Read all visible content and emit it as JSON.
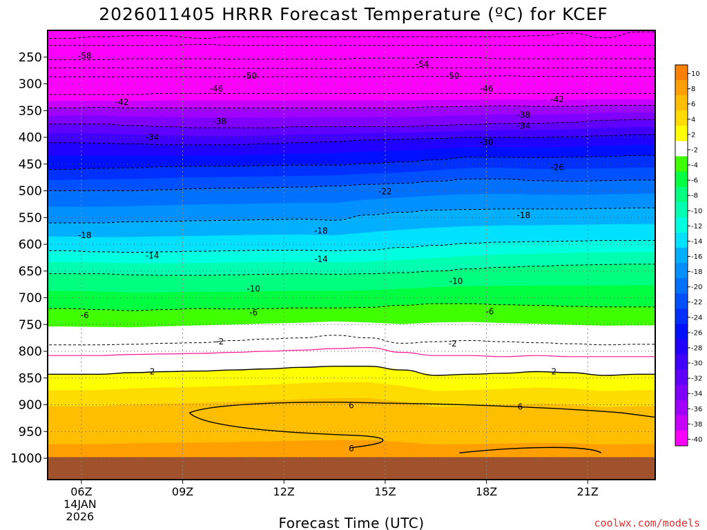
{
  "chart_data": {
    "type": "heatmap",
    "title": "2026011405 HRRR Forecast Temperature (ºC) for KCEF",
    "xlabel": "Forecast Time (UTC)",
    "ylabel": "",
    "credit": "coolwx.com/models",
    "x_ticks": [
      {
        "hour": 6,
        "label": "06Z",
        "sub1": "14JAN",
        "sub2": "2026"
      },
      {
        "hour": 9,
        "label": "09Z"
      },
      {
        "hour": 12,
        "label": "12Z"
      },
      {
        "hour": 15,
        "label": "15Z"
      },
      {
        "hour": 18,
        "label": "18Z"
      },
      {
        "hour": 21,
        "label": "21Z"
      }
    ],
    "xlim": [
      5,
      23
    ],
    "y_ticks": [
      250,
      300,
      350,
      400,
      450,
      500,
      550,
      600,
      650,
      700,
      750,
      800,
      850,
      900,
      950,
      1000
    ],
    "ylim_hPa": [
      200,
      1040
    ],
    "colorbar": {
      "ticks": [
        10,
        8,
        6,
        4,
        2,
        -2,
        -4,
        -6,
        -8,
        -10,
        -12,
        -14,
        -16,
        -18,
        -20,
        -22,
        -24,
        -26,
        -28,
        -30,
        -32,
        -34,
        -36,
        -38,
        -40
      ],
      "colors": [
        "#ff8000",
        "#ffa000",
        "#ffbe00",
        "#ffdc00",
        "#ffff00",
        "#ffffff",
        "#40ff00",
        "#00ff40",
        "#00ff80",
        "#00ffb0",
        "#00ffe0",
        "#00e0ff",
        "#00b0ff",
        "#0090ff",
        "#0070ff",
        "#0050ff",
        "#0030ff",
        "#0010ff",
        "#2000ff",
        "#4000ff",
        "#6000ff",
        "#8000ff",
        "#a000ff",
        "#c800ff",
        "#ff00ff"
      ]
    },
    "ground_color": "#a0522d",
    "isotherms": [
      {
        "t": -62,
        "p": [
          215,
          212,
          210,
          210,
          215,
          212,
          212,
          212,
          212,
          212,
          212,
          212,
          212,
          212,
          210,
          205,
          214,
          203
        ]
      },
      {
        "t": -58,
        "p": [
          228,
          228,
          228,
          228,
          226,
          228,
          228,
          228,
          228,
          228,
          228,
          228,
          228,
          228,
          228,
          228,
          228,
          228
        ]
      },
      {
        "t": -54,
        "p": [
          255,
          255,
          253,
          253,
          253,
          254,
          254,
          254,
          254,
          252,
          252,
          251,
          251,
          253,
          253,
          253,
          253,
          253
        ]
      },
      {
        "t": -50,
        "p": [
          270,
          270,
          270,
          270,
          270,
          271,
          271,
          271,
          271,
          270,
          270,
          270,
          270,
          270,
          270,
          270,
          270,
          270
        ]
      },
      {
        "t": -46,
        "p": [
          287,
          287,
          287,
          287,
          287,
          287,
          287,
          287,
          287,
          287,
          286,
          286,
          286,
          285,
          286,
          286,
          286,
          286
        ]
      },
      {
        "t": -42,
        "p": [
          320,
          320,
          320,
          318,
          318,
          318,
          318,
          318,
          318,
          318,
          318,
          318,
          318,
          318,
          318,
          318,
          318,
          318
        ]
      },
      {
        "t": -38,
        "p": [
          345,
          344,
          345,
          345,
          345,
          345,
          345,
          345,
          345,
          345,
          345,
          343,
          342,
          341,
          342,
          342,
          340,
          340
        ]
      },
      {
        "t": -34,
        "p": [
          375,
          375,
          378,
          380,
          382,
          382,
          382,
          380,
          380,
          380,
          380,
          378,
          376,
          374,
          374,
          372,
          368,
          367
        ]
      },
      {
        "t": -30,
        "p": [
          410,
          411,
          412,
          414,
          414,
          414,
          412,
          410,
          408,
          405,
          404,
          402,
          400,
          400,
          400,
          399,
          397,
          395
        ]
      },
      {
        "t": -26,
        "p": [
          460,
          458,
          457,
          455,
          454,
          454,
          453,
          452,
          452,
          449,
          446,
          442,
          437,
          437,
          438,
          437,
          436,
          434
        ]
      },
      {
        "t": -22,
        "p": [
          500,
          500,
          500,
          498,
          496,
          495,
          494,
          493,
          491,
          488,
          486,
          482,
          478,
          478,
          481,
          482,
          481,
          480
        ]
      },
      {
        "t": -18,
        "p": [
          560,
          560,
          558,
          557,
          556,
          555,
          554,
          553,
          555,
          545,
          540,
          536,
          535,
          534,
          534,
          534,
          533,
          532
        ]
      },
      {
        "t": -14,
        "p": [
          612,
          614,
          615,
          614,
          613,
          612,
          611,
          611,
          612,
          611,
          606,
          602,
          598,
          596,
          595,
          594,
          593,
          593
        ]
      },
      {
        "t": -10,
        "p": [
          655,
          655,
          657,
          658,
          658,
          657,
          656,
          655,
          656,
          655,
          653,
          650,
          646,
          643,
          641,
          639,
          638,
          637
        ]
      },
      {
        "t": -6,
        "p": [
          720,
          722,
          724,
          722,
          720,
          721,
          720,
          719,
          719,
          718,
          714,
          711,
          711,
          713,
          714,
          716,
          717,
          717
        ]
      },
      {
        "t": -2,
        "p": [
          788,
          788,
          787,
          785,
          784,
          780,
          777,
          775,
          770,
          775,
          785,
          782,
          780,
          782,
          784,
          786,
          788,
          787
        ]
      },
      {
        "t": 2,
        "p": [
          843,
          843,
          840,
          838,
          837,
          835,
          833,
          830,
          828,
          828,
          835,
          845,
          843,
          841,
          838,
          840,
          845,
          843
        ]
      }
    ],
    "zero_line_p": [
      808,
      808,
      806,
      805,
      804,
      802,
      800,
      798,
      795,
      793,
      802,
      808,
      808,
      810,
      808,
      810,
      810,
      810
    ],
    "labels": [
      {
        "text": "-58",
        "h": 6.1,
        "p": 248
      },
      {
        "text": "-54",
        "h": 16.1,
        "p": 263
      },
      {
        "text": "-50",
        "h": 11.0,
        "p": 285
      },
      {
        "text": "-50",
        "h": 17.0,
        "p": 285
      },
      {
        "text": "-46",
        "h": 10.0,
        "p": 309
      },
      {
        "text": "-46",
        "h": 18.0,
        "p": 309
      },
      {
        "text": "-42",
        "h": 7.2,
        "p": 334
      },
      {
        "text": "-42",
        "h": 20.1,
        "p": 329
      },
      {
        "text": "-38",
        "h": 10.1,
        "p": 370
      },
      {
        "text": "-38",
        "h": 19.1,
        "p": 358
      },
      {
        "text": "-34",
        "h": 8.1,
        "p": 400
      },
      {
        "text": "-34",
        "h": 19.1,
        "p": 379
      },
      {
        "text": "-30",
        "h": 18.0,
        "p": 409
      },
      {
        "text": "-26",
        "h": 20.1,
        "p": 456
      },
      {
        "text": "-22",
        "h": 15.0,
        "p": 501
      },
      {
        "text": "-18",
        "h": 6.1,
        "p": 583
      },
      {
        "text": "-18",
        "h": 13.1,
        "p": 575
      },
      {
        "text": "-18",
        "h": 19.1,
        "p": 546
      },
      {
        "text": "-14",
        "h": 8.1,
        "p": 621
      },
      {
        "text": "-14",
        "h": 13.1,
        "p": 628
      },
      {
        "text": "-10",
        "h": 11.1,
        "p": 683
      },
      {
        "text": "-10",
        "h": 17.1,
        "p": 669
      },
      {
        "text": "-6",
        "h": 6.1,
        "p": 733
      },
      {
        "text": "-6",
        "h": 11.1,
        "p": 728
      },
      {
        "text": "-6",
        "h": 18.1,
        "p": 726
      },
      {
        "text": "-2",
        "h": 10.1,
        "p": 782
      },
      {
        "text": "-2",
        "h": 17.0,
        "p": 786
      },
      {
        "text": "2",
        "h": 8.1,
        "p": 838
      },
      {
        "text": "2",
        "h": 20.0,
        "p": 838
      },
      {
        "text": "6",
        "h": 14.0,
        "p": 901
      },
      {
        "text": "6",
        "h": 19.0,
        "p": 904
      },
      {
        "text": "6",
        "h": 14.0,
        "p": 982
      }
    ]
  }
}
